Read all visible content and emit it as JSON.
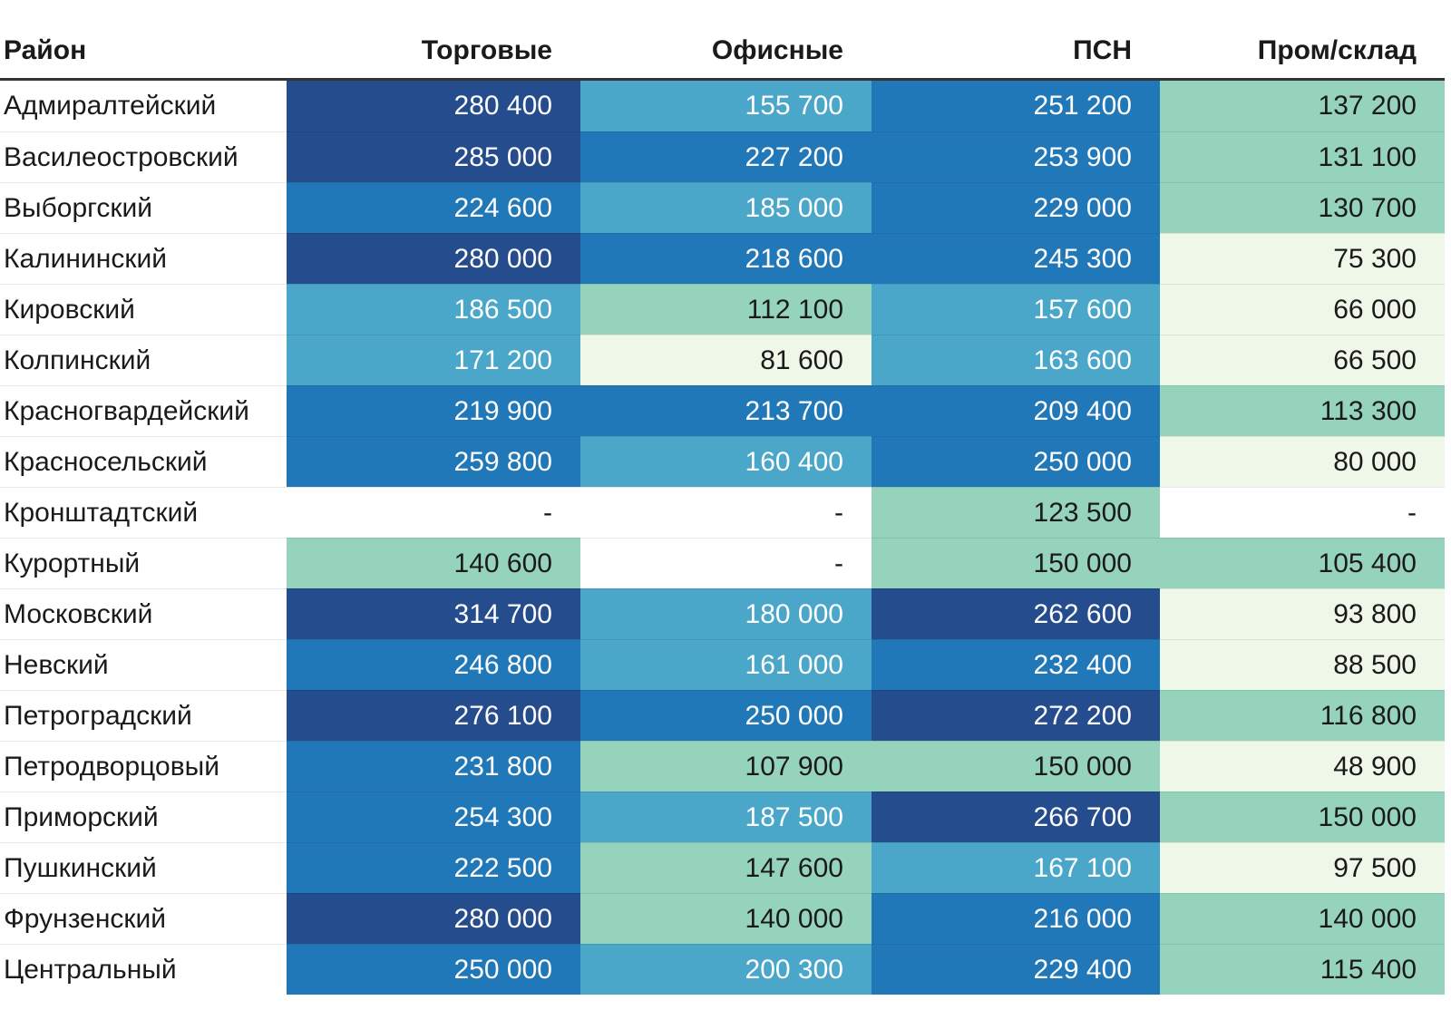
{
  "table": {
    "columns": [
      "Район",
      "Торговые",
      "Офисные",
      "ПСН",
      "Пром/склад"
    ],
    "rows": [
      {
        "district": "Адмиралтейский",
        "values": [
          "280 400",
          "155 700",
          "251 200",
          "137 200"
        ]
      },
      {
        "district": "Василеостровский",
        "values": [
          "285 000",
          "227 200",
          "253 900",
          "131 100"
        ]
      },
      {
        "district": "Выборгский",
        "values": [
          "224 600",
          "185 000",
          "229 000",
          "130 700"
        ]
      },
      {
        "district": "Калининский",
        "values": [
          "280 000",
          "218 600",
          "245 300",
          "75 300"
        ]
      },
      {
        "district": "Кировский",
        "values": [
          "186 500",
          "112 100",
          "157 600",
          "66 000"
        ]
      },
      {
        "district": "Колпинский",
        "values": [
          "171 200",
          "81 600",
          "163 600",
          "66 500"
        ]
      },
      {
        "district": "Красногвардейский",
        "values": [
          "219 900",
          "213 700",
          "209 400",
          "113 300"
        ]
      },
      {
        "district": "Красносельский",
        "values": [
          "259 800",
          "160 400",
          "250 000",
          "80 000"
        ]
      },
      {
        "district": "Кронштадтский",
        "values": [
          "-",
          "-",
          "123 500",
          "-"
        ]
      },
      {
        "district": "Курортный",
        "values": [
          "140 600",
          "-",
          "150 000",
          "105 400"
        ]
      },
      {
        "district": "Московский",
        "values": [
          "314 700",
          "180 000",
          "262 600",
          "93 800"
        ]
      },
      {
        "district": "Невский",
        "values": [
          "246 800",
          "161 000",
          "232 400",
          "88 500"
        ]
      },
      {
        "district": "Петроградский",
        "values": [
          "276 100",
          "250 000",
          "272 200",
          "116 800"
        ]
      },
      {
        "district": "Петродворцовый",
        "values": [
          "231 800",
          "107 900",
          "150 000",
          "48 900"
        ]
      },
      {
        "district": "Приморский",
        "values": [
          "254 300",
          "187 500",
          "266 700",
          "150 000"
        ]
      },
      {
        "district": "Пушкинский",
        "values": [
          "222 500",
          "147 600",
          "167 100",
          "97 500"
        ]
      },
      {
        "district": "Фрунзенский",
        "values": [
          "280 000",
          "140 000",
          "216 000",
          "140 000"
        ]
      },
      {
        "district": "Центральный",
        "values": [
          "250 000",
          "200 300",
          "229 400",
          "115 400"
        ]
      }
    ]
  },
  "heatmap": {
    "empty_placeholder": "-",
    "thresholds": [
      100000,
      150000,
      205000,
      260000
    ],
    "levels": [
      {
        "color": "#eff7e9",
        "text": "#1a1a1a"
      },
      {
        "color": "#95d3bd",
        "text": "#1a1a1a"
      },
      {
        "color": "#4aa7c9",
        "text": "#ffffff"
      },
      {
        "color": "#2178b8",
        "text": "#ffffff"
      },
      {
        "color": "#254c8c",
        "text": "#ffffff"
      }
    ],
    "empty_cell_color": "#ffffff",
    "empty_cell_text": "#1a1a1a",
    "header_border_color": "#333333",
    "row_separator_color": "rgba(0,0,0,0.09)"
  },
  "chart_data": {
    "type": "heatmap",
    "title": "",
    "categories": [
      "Адмиралтейский",
      "Василеостровский",
      "Выборгский",
      "Калининский",
      "Кировский",
      "Колпинский",
      "Красногвардейский",
      "Красносельский",
      "Кронштадтский",
      "Курортный",
      "Московский",
      "Невский",
      "Петроградский",
      "Петродворцовый",
      "Приморский",
      "Пушкинский",
      "Фрунзенский",
      "Центральный"
    ],
    "series": [
      {
        "name": "Торговые",
        "values": [
          280400,
          285000,
          224600,
          280000,
          186500,
          171200,
          219900,
          259800,
          null,
          140600,
          314700,
          246800,
          276100,
          231800,
          254300,
          222500,
          280000,
          250000
        ]
      },
      {
        "name": "Офисные",
        "values": [
          155700,
          227200,
          185000,
          218600,
          112100,
          81600,
          213700,
          160400,
          null,
          null,
          180000,
          161000,
          250000,
          107900,
          187500,
          147600,
          140000,
          200300
        ]
      },
      {
        "name": "ПСН",
        "values": [
          251200,
          253900,
          229000,
          245300,
          157600,
          163600,
          209400,
          250000,
          123500,
          150000,
          262600,
          232400,
          272200,
          150000,
          266700,
          167100,
          216000,
          229400
        ]
      },
      {
        "name": "Пром/склад",
        "values": [
          137200,
          131100,
          130700,
          75300,
          66000,
          66500,
          113300,
          80000,
          null,
          105400,
          93800,
          88500,
          116800,
          48900,
          150000,
          97500,
          140000,
          115400
        ]
      }
    ],
    "missing_value_display": "-",
    "color_scale": {
      "type": "threshold",
      "thresholds": [
        100000,
        150000,
        205000,
        260000
      ],
      "colors": [
        "#eff7e9",
        "#95d3bd",
        "#4aa7c9",
        "#2178b8",
        "#254c8c"
      ]
    },
    "legend_position": "none",
    "grid": false
  }
}
